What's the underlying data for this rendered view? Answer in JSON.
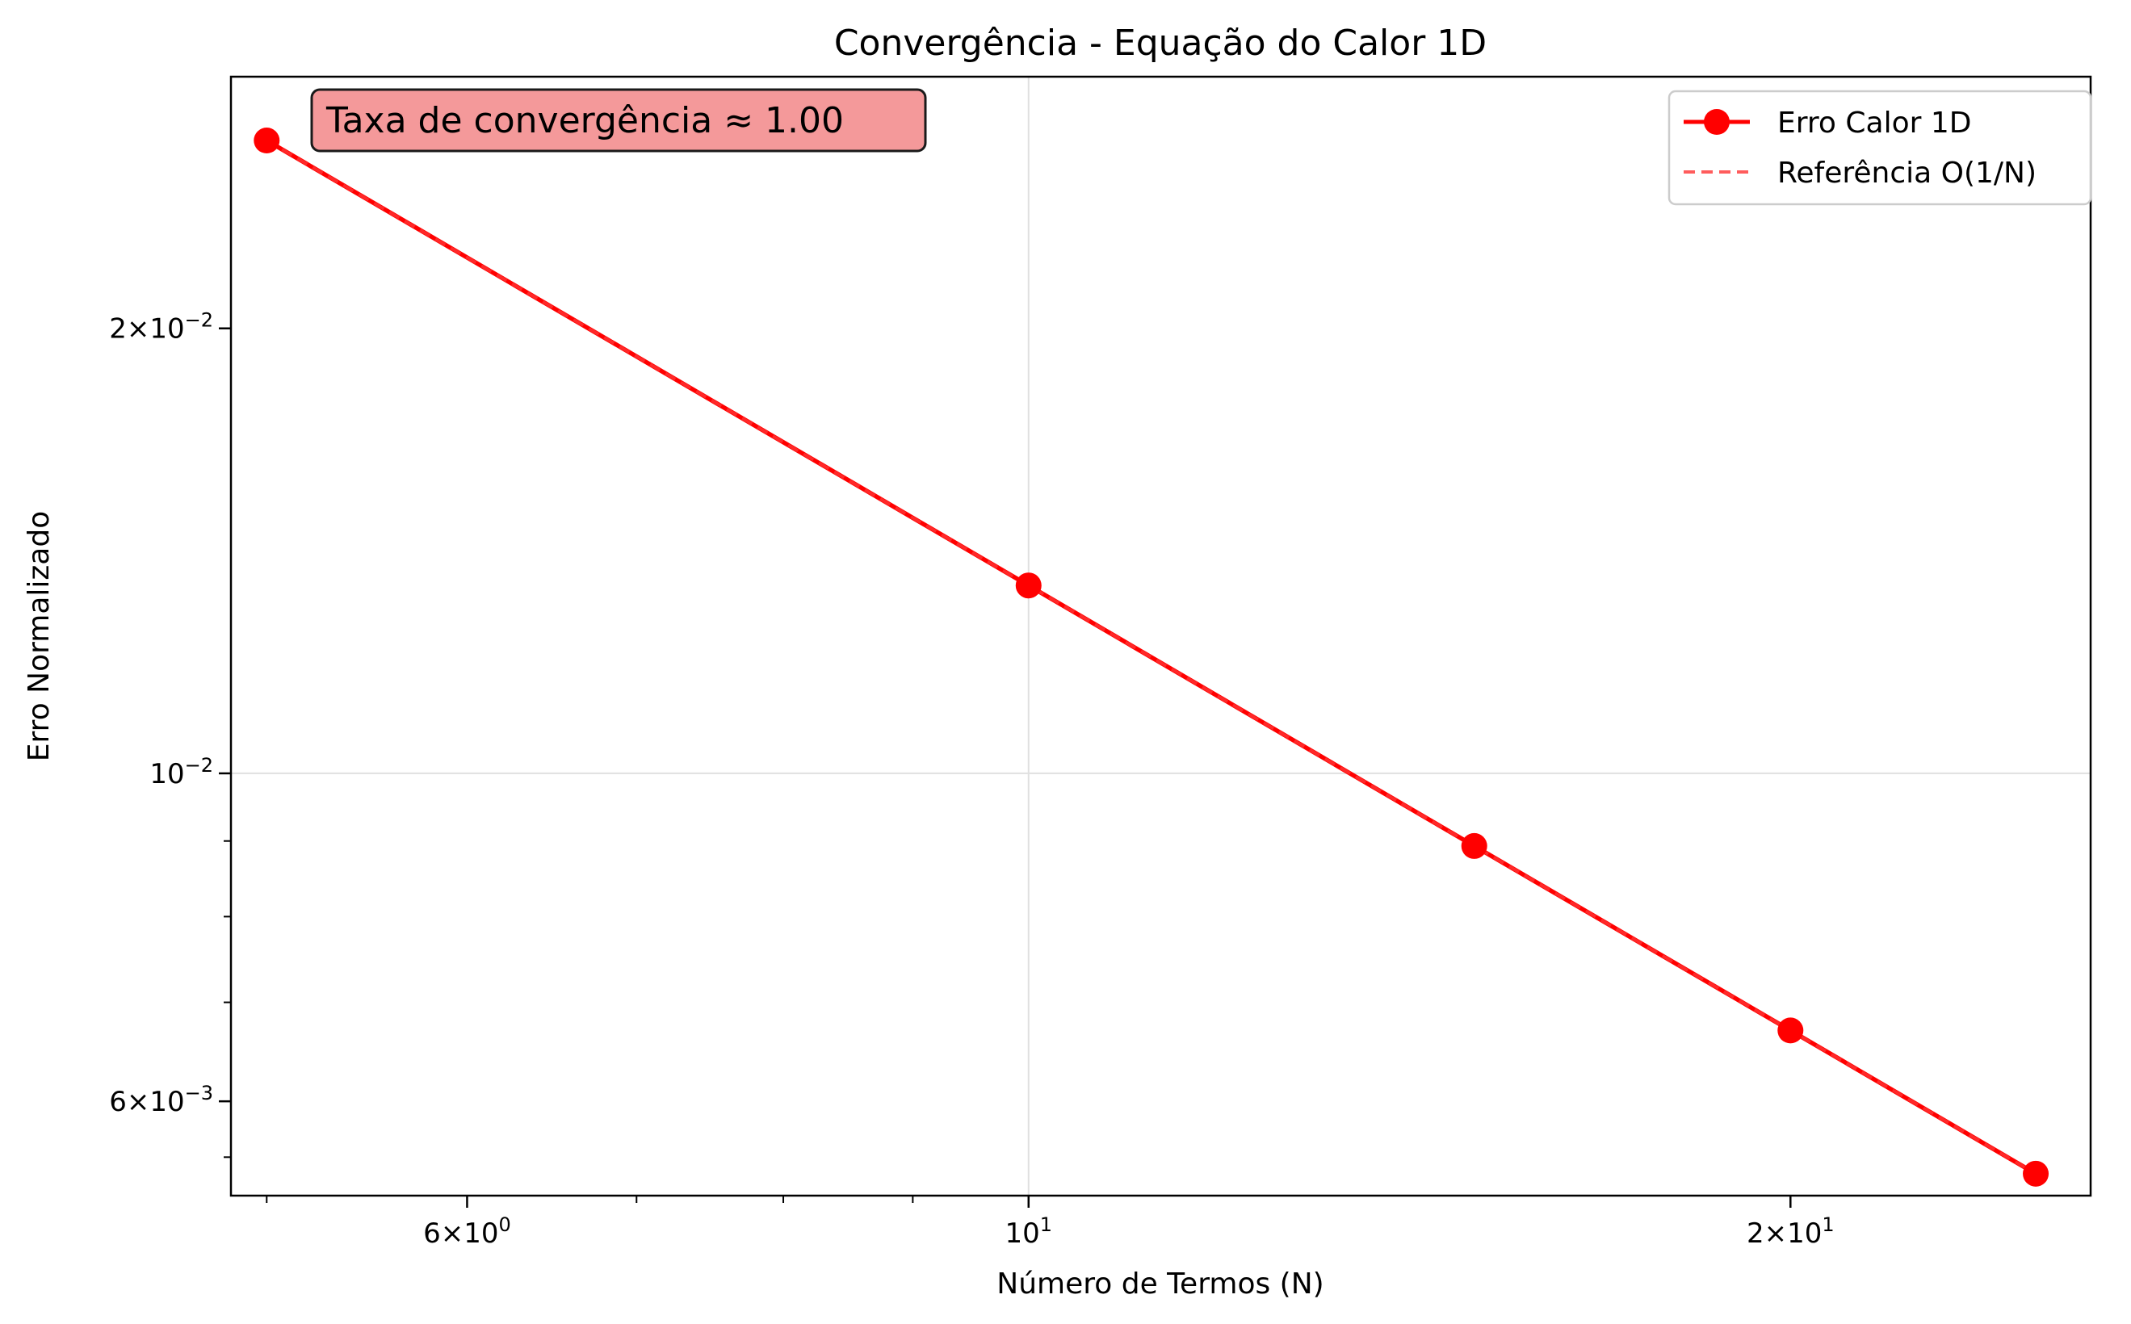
{
  "chart_data": {
    "type": "line",
    "title": "Convergência - Equação do Calor 1D",
    "xlabel": "Número de Termos (N)",
    "ylabel": "Erro Normalizado",
    "xscale": "log",
    "yscale": "log",
    "xlim": [
      4.84,
      26.28
    ],
    "ylim": [
      0.00518,
      0.0296
    ],
    "grid": true,
    "legend_position": "top-right",
    "x_ticks": [
      {
        "value": 6,
        "base": "6×10",
        "exp": "0"
      },
      {
        "value": 10,
        "base": "10",
        "exp": "1"
      },
      {
        "value": 20,
        "base": "2×10",
        "exp": "1"
      }
    ],
    "y_ticks": [
      {
        "value": 0.006,
        "base": "6×10",
        "exp": "−3"
      },
      {
        "value": 0.01,
        "base": "10",
        "exp": "−2"
      },
      {
        "value": 0.02,
        "base": "2×10",
        "exp": "−2"
      }
    ],
    "series": [
      {
        "name": "Erro Calor 1D",
        "color": "#ff0000",
        "style": "solid-with-markers",
        "x": [
          5,
          10,
          15,
          20,
          25
        ],
        "y": [
          0.0268,
          0.0134,
          0.00893,
          0.0067,
          0.00536
        ]
      },
      {
        "name": "Referência O(1/N)",
        "color": "#ff3333",
        "style": "dashed",
        "x": [
          5,
          10,
          15,
          20,
          25
        ],
        "y": [
          0.0268,
          0.0134,
          0.00893,
          0.0067,
          0.00536
        ]
      }
    ],
    "annotation": {
      "text": "Taxa de convergência ≈ 1.00",
      "fill": "#f4999a",
      "position": "top-left"
    }
  }
}
